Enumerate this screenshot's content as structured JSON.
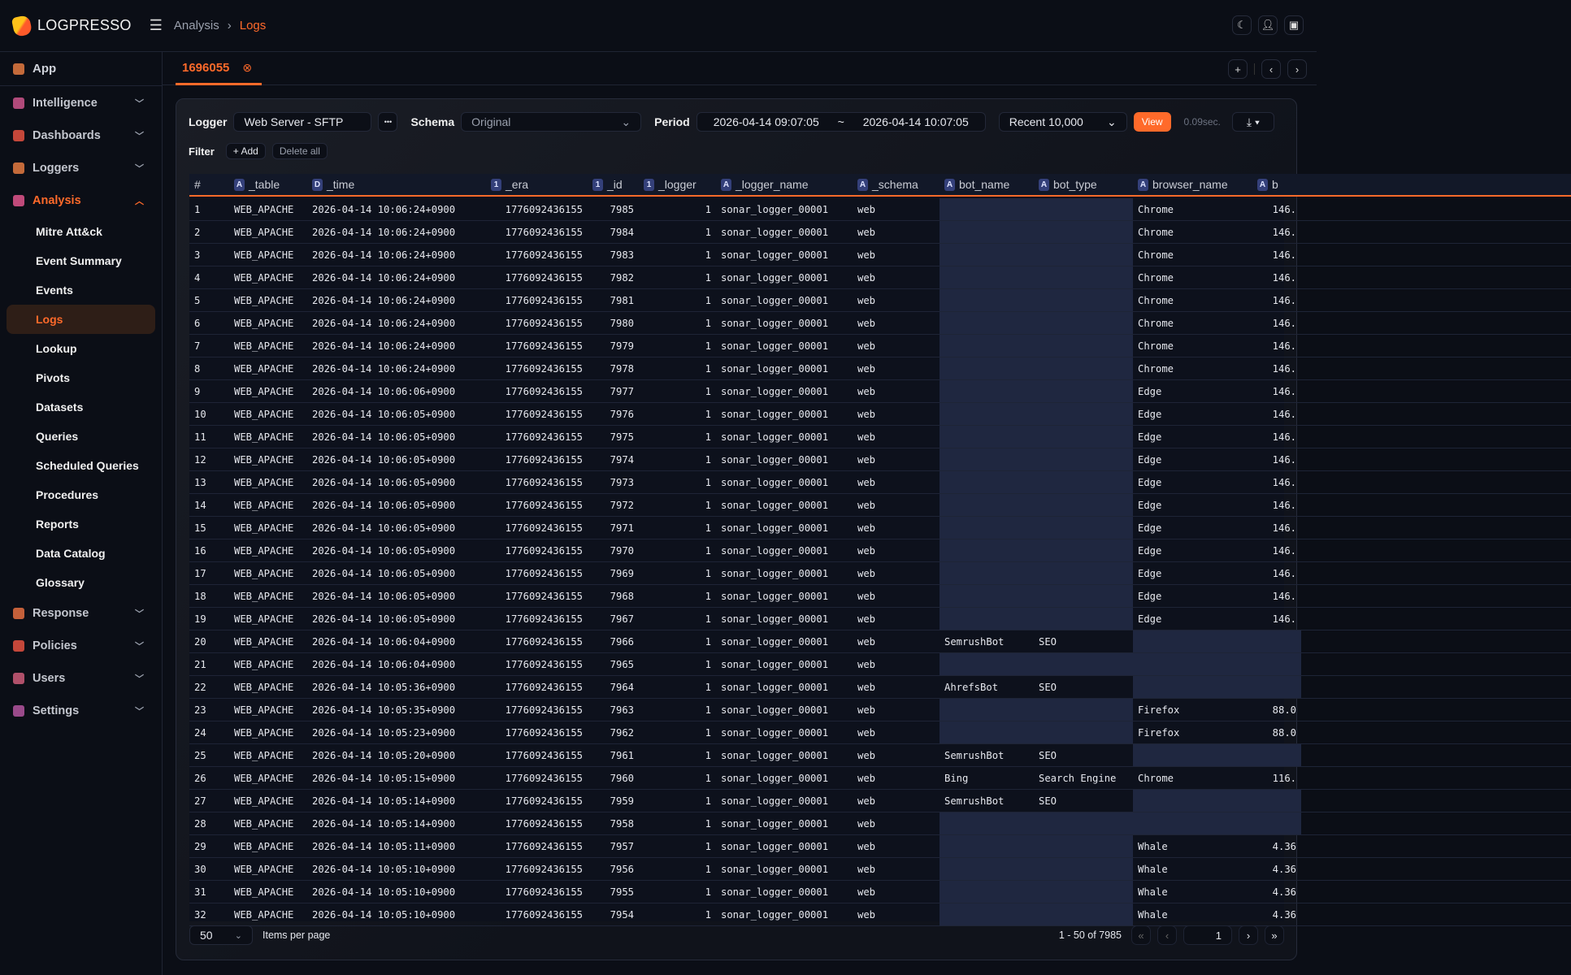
{
  "header": {
    "brand": "LOGPRESSO",
    "breadcrumb": [
      "Analysis",
      "Logs"
    ],
    "icons": [
      "moon-icon",
      "user-icon",
      "ticket-icon"
    ]
  },
  "sidebar": {
    "app": "App",
    "groups_top": [
      {
        "label": "Intelligence",
        "color": "#b04a7a"
      },
      {
        "label": "Dashboards",
        "color": "#c4473a"
      },
      {
        "label": "Loggers",
        "color": "#c46a3a"
      }
    ],
    "analysis": {
      "label": "Analysis",
      "items": [
        "Mitre Att&ck",
        "Event Summary",
        "Events",
        "Logs",
        "Lookup",
        "Pivots",
        "Datasets",
        "Queries",
        "Scheduled Queries",
        "Procedures",
        "Reports",
        "Data Catalog",
        "Glossary"
      ],
      "active": "Logs"
    },
    "groups_bottom": [
      {
        "label": "Response",
        "color": "#c4603a"
      },
      {
        "label": "Policies",
        "color": "#c4473a"
      },
      {
        "label": "Users",
        "color": "#b0506a"
      },
      {
        "label": "Settings",
        "color": "#9a4a8a"
      }
    ]
  },
  "tab": {
    "label": "1696055"
  },
  "toolbar": {
    "logger_label": "Logger",
    "logger_value": "Web Server - SFTP",
    "more": "•••",
    "schema_label": "Schema",
    "schema_value": "Original",
    "period_label": "Period",
    "period_from": "2026-04-14 09:07:05",
    "period_sep": "~",
    "period_to": "2026-04-14 10:07:05",
    "limit": "Recent 10,000",
    "view": "View",
    "elapsed": "0.09sec.",
    "filter_label": "Filter",
    "add": "+ Add",
    "delete_all": "Delete all"
  },
  "accent": "#ff6a2a",
  "table": {
    "columns": [
      {
        "name": "#",
        "type": ""
      },
      {
        "name": "_table",
        "type": "A"
      },
      {
        "name": "_time",
        "type": "D"
      },
      {
        "name": "_era",
        "type": "1"
      },
      {
        "name": "_id",
        "type": "1"
      },
      {
        "name": "_logger",
        "type": "1"
      },
      {
        "name": "_logger_name",
        "type": "A"
      },
      {
        "name": "_schema",
        "type": "A"
      },
      {
        "name": "bot_name",
        "type": "A"
      },
      {
        "name": "bot_type",
        "type": "A"
      },
      {
        "name": "browser_name",
        "type": "A"
      },
      {
        "name": "b",
        "type": "A"
      }
    ],
    "rows": [
      [
        "1",
        "WEB_APACHE",
        "2026-04-14 10:06:24+0900",
        "1776092436155",
        "7985",
        "1",
        "sonar_logger_00001",
        "web",
        "",
        "",
        "Chrome",
        "146."
      ],
      [
        "2",
        "WEB_APACHE",
        "2026-04-14 10:06:24+0900",
        "1776092436155",
        "7984",
        "1",
        "sonar_logger_00001",
        "web",
        "",
        "",
        "Chrome",
        "146."
      ],
      [
        "3",
        "WEB_APACHE",
        "2026-04-14 10:06:24+0900",
        "1776092436155",
        "7983",
        "1",
        "sonar_logger_00001",
        "web",
        "",
        "",
        "Chrome",
        "146."
      ],
      [
        "4",
        "WEB_APACHE",
        "2026-04-14 10:06:24+0900",
        "1776092436155",
        "7982",
        "1",
        "sonar_logger_00001",
        "web",
        "",
        "",
        "Chrome",
        "146."
      ],
      [
        "5",
        "WEB_APACHE",
        "2026-04-14 10:06:24+0900",
        "1776092436155",
        "7981",
        "1",
        "sonar_logger_00001",
        "web",
        "",
        "",
        "Chrome",
        "146."
      ],
      [
        "6",
        "WEB_APACHE",
        "2026-04-14 10:06:24+0900",
        "1776092436155",
        "7980",
        "1",
        "sonar_logger_00001",
        "web",
        "",
        "",
        "Chrome",
        "146."
      ],
      [
        "7",
        "WEB_APACHE",
        "2026-04-14 10:06:24+0900",
        "1776092436155",
        "7979",
        "1",
        "sonar_logger_00001",
        "web",
        "",
        "",
        "Chrome",
        "146."
      ],
      [
        "8",
        "WEB_APACHE",
        "2026-04-14 10:06:24+0900",
        "1776092436155",
        "7978",
        "1",
        "sonar_logger_00001",
        "web",
        "",
        "",
        "Chrome",
        "146."
      ],
      [
        "9",
        "WEB_APACHE",
        "2026-04-14 10:06:06+0900",
        "1776092436155",
        "7977",
        "1",
        "sonar_logger_00001",
        "web",
        "",
        "",
        "Edge",
        "146."
      ],
      [
        "10",
        "WEB_APACHE",
        "2026-04-14 10:06:05+0900",
        "1776092436155",
        "7976",
        "1",
        "sonar_logger_00001",
        "web",
        "",
        "",
        "Edge",
        "146."
      ],
      [
        "11",
        "WEB_APACHE",
        "2026-04-14 10:06:05+0900",
        "1776092436155",
        "7975",
        "1",
        "sonar_logger_00001",
        "web",
        "",
        "",
        "Edge",
        "146."
      ],
      [
        "12",
        "WEB_APACHE",
        "2026-04-14 10:06:05+0900",
        "1776092436155",
        "7974",
        "1",
        "sonar_logger_00001",
        "web",
        "",
        "",
        "Edge",
        "146."
      ],
      [
        "13",
        "WEB_APACHE",
        "2026-04-14 10:06:05+0900",
        "1776092436155",
        "7973",
        "1",
        "sonar_logger_00001",
        "web",
        "",
        "",
        "Edge",
        "146."
      ],
      [
        "14",
        "WEB_APACHE",
        "2026-04-14 10:06:05+0900",
        "1776092436155",
        "7972",
        "1",
        "sonar_logger_00001",
        "web",
        "",
        "",
        "Edge",
        "146."
      ],
      [
        "15",
        "WEB_APACHE",
        "2026-04-14 10:06:05+0900",
        "1776092436155",
        "7971",
        "1",
        "sonar_logger_00001",
        "web",
        "",
        "",
        "Edge",
        "146."
      ],
      [
        "16",
        "WEB_APACHE",
        "2026-04-14 10:06:05+0900",
        "1776092436155",
        "7970",
        "1",
        "sonar_logger_00001",
        "web",
        "",
        "",
        "Edge",
        "146."
      ],
      [
        "17",
        "WEB_APACHE",
        "2026-04-14 10:06:05+0900",
        "1776092436155",
        "7969",
        "1",
        "sonar_logger_00001",
        "web",
        "",
        "",
        "Edge",
        "146."
      ],
      [
        "18",
        "WEB_APACHE",
        "2026-04-14 10:06:05+0900",
        "1776092436155",
        "7968",
        "1",
        "sonar_logger_00001",
        "web",
        "",
        "",
        "Edge",
        "146."
      ],
      [
        "19",
        "WEB_APACHE",
        "2026-04-14 10:06:05+0900",
        "1776092436155",
        "7967",
        "1",
        "sonar_logger_00001",
        "web",
        "",
        "",
        "Edge",
        "146."
      ],
      [
        "20",
        "WEB_APACHE",
        "2026-04-14 10:06:04+0900",
        "1776092436155",
        "7966",
        "1",
        "sonar_logger_00001",
        "web",
        "SemrushBot",
        "SEO",
        "",
        ""
      ],
      [
        "21",
        "WEB_APACHE",
        "2026-04-14 10:06:04+0900",
        "1776092436155",
        "7965",
        "1",
        "sonar_logger_00001",
        "web",
        "",
        "",
        "",
        ""
      ],
      [
        "22",
        "WEB_APACHE",
        "2026-04-14 10:05:36+0900",
        "1776092436155",
        "7964",
        "1",
        "sonar_logger_00001",
        "web",
        "AhrefsBot",
        "SEO",
        "",
        ""
      ],
      [
        "23",
        "WEB_APACHE",
        "2026-04-14 10:05:35+0900",
        "1776092436155",
        "7963",
        "1",
        "sonar_logger_00001",
        "web",
        "",
        "",
        "Firefox",
        "88.0"
      ],
      [
        "24",
        "WEB_APACHE",
        "2026-04-14 10:05:23+0900",
        "1776092436155",
        "7962",
        "1",
        "sonar_logger_00001",
        "web",
        "",
        "",
        "Firefox",
        "88.0"
      ],
      [
        "25",
        "WEB_APACHE",
        "2026-04-14 10:05:20+0900",
        "1776092436155",
        "7961",
        "1",
        "sonar_logger_00001",
        "web",
        "SemrushBot",
        "SEO",
        "",
        ""
      ],
      [
        "26",
        "WEB_APACHE",
        "2026-04-14 10:05:15+0900",
        "1776092436155",
        "7960",
        "1",
        "sonar_logger_00001",
        "web",
        "Bing",
        "Search Engine",
        "Chrome",
        "116."
      ],
      [
        "27",
        "WEB_APACHE",
        "2026-04-14 10:05:14+0900",
        "1776092436155",
        "7959",
        "1",
        "sonar_logger_00001",
        "web",
        "SemrushBot",
        "SEO",
        "",
        ""
      ],
      [
        "28",
        "WEB_APACHE",
        "2026-04-14 10:05:14+0900",
        "1776092436155",
        "7958",
        "1",
        "sonar_logger_00001",
        "web",
        "",
        "",
        "",
        ""
      ],
      [
        "29",
        "WEB_APACHE",
        "2026-04-14 10:05:11+0900",
        "1776092436155",
        "7957",
        "1",
        "sonar_logger_00001",
        "web",
        "",
        "",
        "Whale",
        "4.36"
      ],
      [
        "30",
        "WEB_APACHE",
        "2026-04-14 10:05:10+0900",
        "1776092436155",
        "7956",
        "1",
        "sonar_logger_00001",
        "web",
        "",
        "",
        "Whale",
        "4.36"
      ],
      [
        "31",
        "WEB_APACHE",
        "2026-04-14 10:05:10+0900",
        "1776092436155",
        "7955",
        "1",
        "sonar_logger_00001",
        "web",
        "",
        "",
        "Whale",
        "4.36"
      ],
      [
        "32",
        "WEB_APACHE",
        "2026-04-14 10:05:10+0900",
        "1776092436155",
        "7954",
        "1",
        "sonar_logger_00001",
        "web",
        "",
        "",
        "Whale",
        "4.36"
      ]
    ]
  },
  "pagination": {
    "per_page": "50",
    "per_page_label": "Items per page",
    "range": "1 - 50 of 7985",
    "page": "1"
  }
}
